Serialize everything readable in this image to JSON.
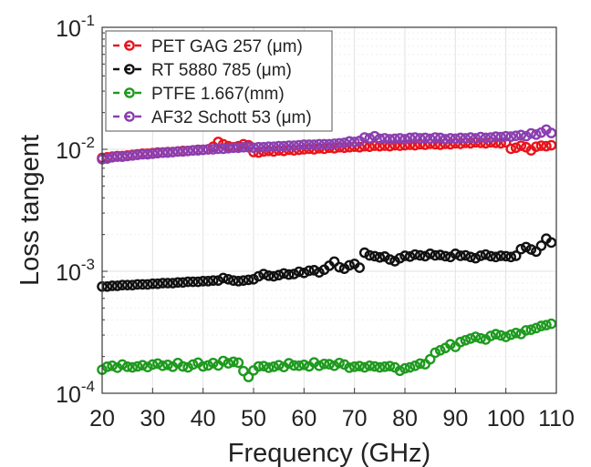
{
  "chart_data": {
    "type": "scatter",
    "xlabel": "Frequency (GHz)",
    "ylabel": "Loss tangent",
    "xlim": [
      20,
      110
    ],
    "ylim": [
      0.0001,
      0.1
    ],
    "yscale": "log",
    "x_ticks": [
      "20",
      "30",
      "40",
      "50",
      "60",
      "70",
      "80",
      "90",
      "100",
      "110"
    ],
    "y_ticks": [
      {
        "base": "10",
        "exp": "-4"
      },
      {
        "base": "10",
        "exp": "-3"
      },
      {
        "base": "10",
        "exp": "-2"
      },
      {
        "base": "10",
        "exp": "-1"
      }
    ],
    "grid": true,
    "legend_position": "top-left",
    "series": [
      {
        "name": "PET GAG 257 (μm)",
        "color": "#e8141b",
        "marker": "circle",
        "x": [
          20,
          21,
          22,
          23,
          24,
          25,
          26,
          27,
          28,
          29,
          30,
          31,
          32,
          33,
          34,
          35,
          36,
          37,
          38,
          39,
          40,
          41,
          42,
          43,
          44,
          45,
          46,
          47,
          48,
          49,
          50,
          51,
          52,
          53,
          54,
          55,
          56,
          57,
          58,
          59,
          60,
          61,
          62,
          63,
          64,
          65,
          66,
          67,
          68,
          69,
          70,
          71,
          72,
          73,
          74,
          75,
          76,
          77,
          78,
          79,
          80,
          81,
          82,
          83,
          84,
          85,
          86,
          87,
          88,
          89,
          90,
          91,
          92,
          93,
          94,
          95,
          96,
          97,
          98,
          99,
          100,
          101,
          102,
          103,
          104,
          105,
          106,
          107,
          108,
          109
        ],
        "y": [
          0.0085,
          0.0086,
          0.0087,
          0.0088,
          0.0088,
          0.0089,
          0.009,
          0.0091,
          0.0092,
          0.0092,
          0.0093,
          0.0094,
          0.0094,
          0.0095,
          0.0095,
          0.0096,
          0.0097,
          0.0097,
          0.0098,
          0.0099,
          0.0099,
          0.01,
          0.0105,
          0.0115,
          0.011,
          0.0106,
          0.0104,
          0.0106,
          0.011,
          0.0108,
          0.0095,
          0.0094,
          0.0096,
          0.0097,
          0.0096,
          0.0098,
          0.0097,
          0.0099,
          0.0098,
          0.0099,
          0.01,
          0.0101,
          0.01,
          0.0102,
          0.0101,
          0.0103,
          0.0102,
          0.0104,
          0.0103,
          0.0104,
          0.0105,
          0.0104,
          0.0106,
          0.0105,
          0.0107,
          0.0106,
          0.0107,
          0.0106,
          0.0108,
          0.0107,
          0.0108,
          0.0109,
          0.0108,
          0.011,
          0.0109,
          0.0111,
          0.011,
          0.0109,
          0.0111,
          0.011,
          0.0112,
          0.0111,
          0.0113,
          0.0112,
          0.0114,
          0.0113,
          0.0112,
          0.0114,
          0.0113,
          0.0112,
          0.0114,
          0.0101,
          0.0103,
          0.0107,
          0.0104,
          0.0098,
          0.0105,
          0.0107,
          0.0106,
          0.0108
        ]
      },
      {
        "name": "RT 5880 785 (μm)",
        "color": "#111111",
        "marker": "circle",
        "x": [
          20,
          21,
          22,
          23,
          24,
          25,
          26,
          27,
          28,
          29,
          30,
          31,
          32,
          33,
          34,
          35,
          36,
          37,
          38,
          39,
          40,
          41,
          42,
          43,
          44,
          45,
          46,
          47,
          48,
          49,
          50,
          51,
          52,
          53,
          54,
          55,
          56,
          57,
          58,
          59,
          60,
          61,
          62,
          63,
          64,
          65,
          66,
          67,
          68,
          69,
          70,
          71,
          72,
          73,
          74,
          75,
          76,
          77,
          78,
          79,
          80,
          81,
          82,
          83,
          84,
          85,
          86,
          87,
          88,
          89,
          90,
          91,
          92,
          93,
          94,
          95,
          96,
          97,
          98,
          99,
          100,
          101,
          102,
          103,
          104,
          105,
          106,
          107,
          108,
          109
        ],
        "y": [
          0.00075,
          0.00075,
          0.00076,
          0.00076,
          0.00077,
          0.00077,
          0.00077,
          0.00078,
          0.00078,
          0.00078,
          0.00079,
          0.00079,
          0.0008,
          0.0008,
          0.0008,
          0.00081,
          0.00081,
          0.00082,
          0.00082,
          0.00082,
          0.00083,
          0.00083,
          0.00084,
          0.00084,
          0.00088,
          0.00086,
          0.00084,
          0.00083,
          0.00084,
          0.00085,
          0.00086,
          0.00091,
          0.00095,
          0.00092,
          0.00091,
          0.00093,
          0.00096,
          0.00094,
          0.00095,
          0.00099,
          0.00097,
          0.00101,
          0.00102,
          0.00098,
          0.00103,
          0.00111,
          0.0012,
          0.00108,
          0.00105,
          0.00112,
          0.00115,
          0.00107,
          0.00142,
          0.00135,
          0.00133,
          0.0013,
          0.00132,
          0.00125,
          0.00121,
          0.00128,
          0.00134,
          0.00132,
          0.00137,
          0.00135,
          0.00133,
          0.00139,
          0.00135,
          0.00136,
          0.00133,
          0.00131,
          0.00139,
          0.00134,
          0.00135,
          0.00131,
          0.00128,
          0.00134,
          0.00137,
          0.00133,
          0.00131,
          0.00134,
          0.00133,
          0.00131,
          0.00134,
          0.00152,
          0.00158,
          0.00151,
          0.00145,
          0.00162,
          0.00185,
          0.00172
        ]
      },
      {
        "name": "PTFE 1.667(mm)",
        "color": "#1e9a1e",
        "marker": "circle",
        "x": [
          20,
          21,
          22,
          23,
          24,
          25,
          26,
          27,
          28,
          29,
          30,
          31,
          32,
          33,
          34,
          35,
          36,
          37,
          38,
          39,
          40,
          41,
          42,
          43,
          44,
          45,
          46,
          47,
          48,
          49,
          50,
          51,
          52,
          53,
          54,
          55,
          56,
          57,
          58,
          59,
          60,
          61,
          62,
          63,
          64,
          65,
          66,
          67,
          68,
          69,
          70,
          71,
          72,
          73,
          74,
          75,
          76,
          77,
          78,
          79,
          80,
          81,
          82,
          83,
          84,
          85,
          86,
          87,
          88,
          89,
          90,
          91,
          92,
          93,
          94,
          95,
          96,
          97,
          98,
          99,
          100,
          101,
          102,
          103,
          104,
          105,
          106,
          107,
          108,
          109
        ],
        "y": [
          0.000156,
          0.000165,
          0.000168,
          0.000162,
          0.000172,
          0.000165,
          0.000163,
          0.000166,
          0.00017,
          0.000164,
          0.000172,
          0.000175,
          0.000168,
          0.000171,
          0.000165,
          0.000177,
          0.000166,
          0.000163,
          0.000172,
          0.000178,
          0.000166,
          0.000169,
          0.000177,
          0.000169,
          0.000184,
          0.000176,
          0.000181,
          0.000178,
          0.000152,
          0.000136,
          0.000154,
          0.000166,
          0.000167,
          0.000162,
          0.000165,
          0.00017,
          0.000164,
          0.000176,
          0.000169,
          0.000168,
          0.000171,
          0.000166,
          0.000179,
          0.000168,
          0.000174,
          0.000173,
          0.000168,
          0.000177,
          0.000172,
          0.000162,
          0.000165,
          0.000167,
          0.000163,
          0.000168,
          0.000166,
          0.000163,
          0.000165,
          0.000167,
          0.000163,
          0.000153,
          0.00016,
          0.000163,
          0.000168,
          0.000175,
          0.000173,
          0.00019,
          0.000215,
          0.000225,
          0.000235,
          0.000252,
          0.00024,
          0.000263,
          0.000272,
          0.000281,
          0.00029,
          0.000282,
          0.000276,
          0.000295,
          0.000305,
          0.000298,
          0.00029,
          0.000302,
          0.000312,
          0.000306,
          0.000328,
          0.000332,
          0.000342,
          0.000356,
          0.000362,
          0.000371
        ]
      },
      {
        "name": "AF32 Schott 53 (μm)",
        "color": "#8a3fb0",
        "marker": "circle",
        "x": [
          20,
          21,
          22,
          23,
          24,
          25,
          26,
          27,
          28,
          29,
          30,
          31,
          32,
          33,
          34,
          35,
          36,
          37,
          38,
          39,
          40,
          41,
          42,
          43,
          44,
          45,
          46,
          47,
          48,
          49,
          50,
          51,
          52,
          53,
          54,
          55,
          56,
          57,
          58,
          59,
          60,
          61,
          62,
          63,
          64,
          65,
          66,
          67,
          68,
          69,
          70,
          71,
          72,
          73,
          74,
          75,
          76,
          77,
          78,
          79,
          80,
          81,
          82,
          83,
          84,
          85,
          86,
          87,
          88,
          89,
          90,
          91,
          92,
          93,
          94,
          95,
          96,
          97,
          98,
          99,
          100,
          101,
          102,
          103,
          104,
          105,
          106,
          107,
          108,
          109
        ],
        "y": [
          0.0083,
          0.0084,
          0.0086,
          0.0087,
          0.0087,
          0.0088,
          0.0089,
          0.009,
          0.0091,
          0.0091,
          0.0092,
          0.0093,
          0.0094,
          0.0094,
          0.0095,
          0.0096,
          0.0096,
          0.0097,
          0.0098,
          0.0098,
          0.0099,
          0.01,
          0.01,
          0.0101,
          0.0101,
          0.0102,
          0.0103,
          0.0103,
          0.0104,
          0.0104,
          0.0103,
          0.0104,
          0.0104,
          0.0105,
          0.0105,
          0.0106,
          0.0106,
          0.0107,
          0.0107,
          0.0108,
          0.0109,
          0.0109,
          0.0109,
          0.011,
          0.011,
          0.011,
          0.0111,
          0.0112,
          0.0113,
          0.0116,
          0.0115,
          0.0117,
          0.0125,
          0.0123,
          0.0128,
          0.0122,
          0.0123,
          0.0121,
          0.0122,
          0.0123,
          0.0121,
          0.0124,
          0.0125,
          0.0123,
          0.0124,
          0.0122,
          0.0125,
          0.0124,
          0.0121,
          0.0123,
          0.0122,
          0.0124,
          0.0123,
          0.0125,
          0.0123,
          0.0126,
          0.0124,
          0.0125,
          0.0127,
          0.0126,
          0.0128,
          0.0127,
          0.0129,
          0.0131,
          0.0128,
          0.0135,
          0.0132,
          0.0137,
          0.0145,
          0.0136
        ]
      }
    ]
  }
}
